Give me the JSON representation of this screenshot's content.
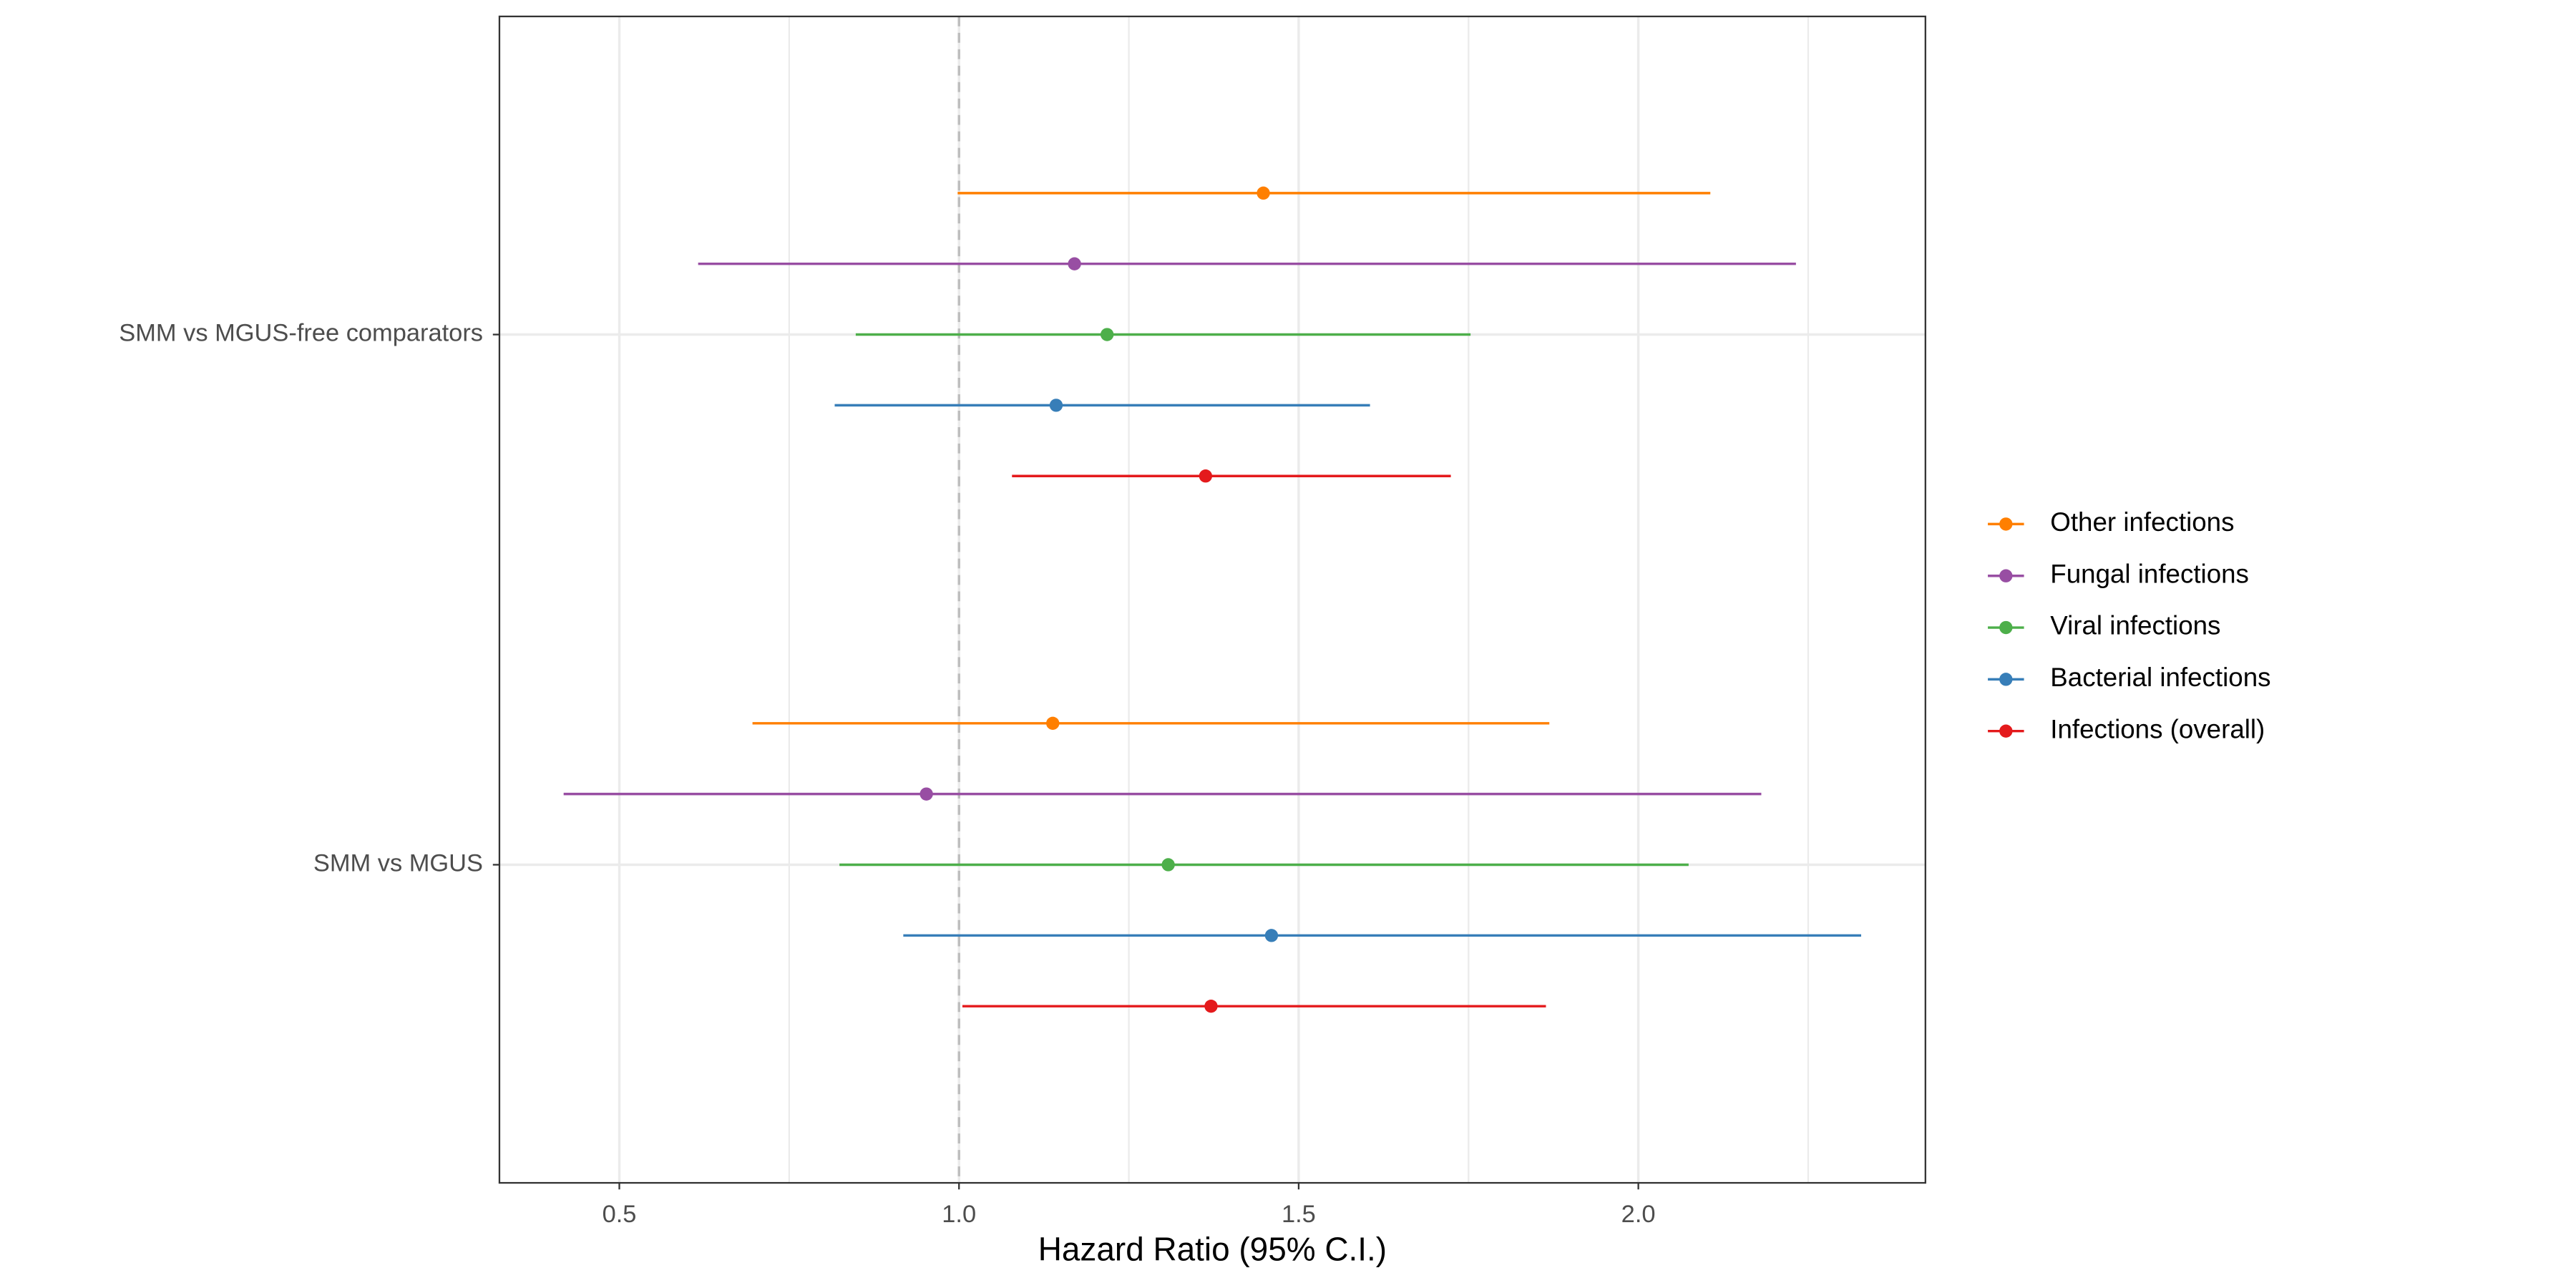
{
  "chart_data": {
    "type": "forest",
    "x_label": "Hazard Ratio (95% C.I.)",
    "categories": [
      "SMM vs MGUS-free comparators",
      "SMM vs MGUS"
    ],
    "series": [
      {
        "name": "Other infections",
        "color": "#ff7f00",
        "values": [
          1.448,
          1.138
        ],
        "lower": [
          0.998,
          0.696
        ],
        "upper": [
          2.106,
          1.869
        ]
      },
      {
        "name": "Fungal infections",
        "color": "#984ea3",
        "values": [
          1.17,
          0.952
        ],
        "lower": [
          0.616,
          0.418
        ],
        "upper": [
          2.232,
          2.181
        ]
      },
      {
        "name": "Viral infections",
        "color": "#4daf4a",
        "values": [
          1.218,
          1.308
        ],
        "lower": [
          0.848,
          0.824
        ],
        "upper": [
          1.753,
          2.074
        ]
      },
      {
        "name": "Bacterial infections",
        "color": "#377eb8",
        "values": [
          1.143,
          1.46
        ],
        "lower": [
          0.817,
          0.918
        ],
        "upper": [
          1.605,
          2.328
        ]
      },
      {
        "name": "Infections (overall)",
        "color": "#e41a1c",
        "values": [
          1.363,
          1.371
        ],
        "lower": [
          1.078,
          1.005
        ],
        "upper": [
          1.724,
          1.864
        ]
      }
    ],
    "xlim": [
      0.3235,
      2.4226
    ],
    "xticks": [
      0.5,
      {
        "value": 1.0,
        "label": "1.0"
      },
      1.5,
      {
        "value": 2.0,
        "label": "2.0"
      }
    ],
    "x_minor_ticks": [
      0.75,
      1.25,
      1.75,
      2.25
    ],
    "reference_line": 1.0,
    "grid": true,
    "legend": "right"
  }
}
